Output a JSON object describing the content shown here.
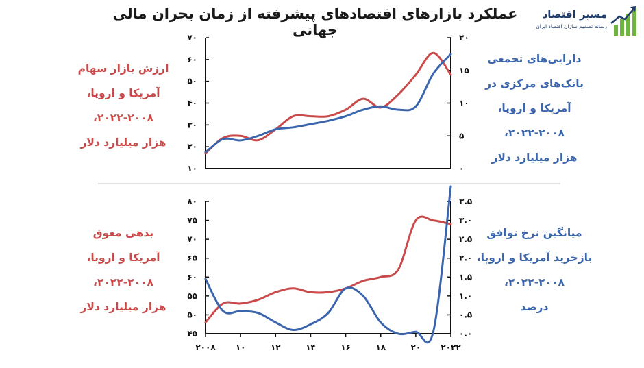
{
  "title": "عملکرد بازارهای اقتصادهای پیشرفته از زمان بحران مالی جهانی",
  "logo": {
    "name": "مسیر اقتصاد",
    "tagline": "رسانه تصمیم سازان اقتصاد ایران"
  },
  "colors": {
    "red": "#c94a4a",
    "blue": "#3b66ad",
    "divider": "#d9d9d9",
    "logo_green": "#6fb43f"
  },
  "panels": {
    "top": {
      "left_label": [
        "ارزش بازار سهام",
        "آمریکا و اروپا،",
        "۲۰۲۲-۲۰۰۸،",
        "هزار میلیارد دلار"
      ],
      "right_label": [
        "دارایی‌های تجمعی",
        "بانک‌های مرکزی در",
        "آمریکا و اروپا،",
        "۲۰۲۲-۲۰۰۸،",
        "هزار میلیارد دلار"
      ]
    },
    "bottom": {
      "left_label": [
        "بدهی معوق",
        "آمریکا و اروپا،",
        "۲۰۲۲-۲۰۰۸،",
        "هزار میلیارد دلار"
      ],
      "right_label": [
        "میانگین نرخ توافق",
        "بازخرید آمریکا و اروپا،",
        "۲۰۲۲-۲۰۰۸،",
        "درصد"
      ]
    }
  },
  "chart_data": [
    {
      "type": "line",
      "x": [
        2008,
        2009,
        2010,
        2011,
        2012,
        2013,
        2014,
        2015,
        2016,
        2017,
        2018,
        2019,
        2020,
        2021,
        2022
      ],
      "x_ticks": [],
      "series": [
        {
          "axis": "left",
          "color": "#c94a4a",
          "values": [
            17,
            24,
            25,
            23,
            28,
            34,
            34,
            34,
            37,
            42,
            38,
            44,
            53,
            63,
            53
          ]
        },
        {
          "axis": "right",
          "color": "#3b66ad",
          "values": [
            2.5,
            4.5,
            4.3,
            5.0,
            6.0,
            6.3,
            6.8,
            7.3,
            8.0,
            9.0,
            9.5,
            9.0,
            9.5,
            14.5,
            17.5
          ]
        }
      ],
      "left_axis": {
        "ylim": [
          10,
          70
        ],
        "ticks": [
          "۱۰",
          "۲۰",
          "۳۰",
          "۴۰",
          "۵۰",
          "۶۰",
          "۷۰"
        ]
      },
      "right_axis": {
        "ylim": [
          0,
          20
        ],
        "ticks": [
          "۰",
          "۵",
          "۱۰",
          "۱۵",
          "۲۰"
        ]
      }
    },
    {
      "type": "line",
      "x": [
        2008,
        2009,
        2010,
        2011,
        2012,
        2013,
        2014,
        2015,
        2016,
        2017,
        2018,
        2019,
        2020,
        2021,
        2022
      ],
      "x_ticks": [
        "۲۰۰۸",
        "۱۰",
        "۱۲",
        "۱۴",
        "۱۶",
        "۱۸",
        "۲۰",
        "۲۰۲۲"
      ],
      "series": [
        {
          "axis": "left",
          "color": "#c94a4a",
          "values": [
            48,
            53,
            53,
            54,
            56,
            57,
            56,
            56,
            57,
            59,
            60,
            62,
            75,
            75,
            74
          ]
        },
        {
          "axis": "right",
          "color": "#3b66ad",
          "values": [
            1.45,
            0.6,
            0.6,
            0.55,
            0.3,
            0.1,
            0.25,
            0.55,
            1.2,
            1.0,
            0.3,
            0.0,
            0.05,
            0.05,
            3.9
          ]
        }
      ],
      "left_axis": {
        "ylim": [
          45,
          80
        ],
        "ticks": [
          "۴۵",
          "۵۰",
          "۵۵",
          "۶۰",
          "۶۵",
          "۷۰",
          "۷۵",
          "۸۰"
        ]
      },
      "right_axis": {
        "ylim": [
          0,
          3.5
        ],
        "ticks": [
          "۰.۰",
          "۰.۵",
          "۱.۰",
          "۱.۵",
          "۲.۰",
          "۲.۵",
          "۳.۰",
          "۳.۵"
        ]
      }
    }
  ]
}
